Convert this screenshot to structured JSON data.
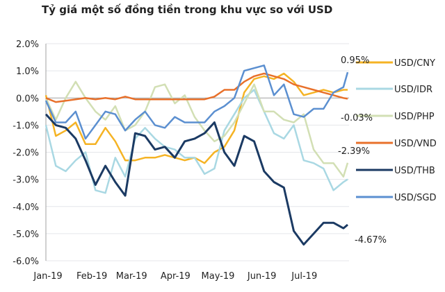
{
  "chart_data": {
    "type": "line",
    "title": "Tỷ giá một số đồng tiền trong khu vực so với USD",
    "xlabel": "",
    "ylabel": "",
    "ylim": [
      -6.0,
      2.0
    ],
    "y_ticks": [
      "2.0%",
      "1.0%",
      "0.0%",
      "-1.0%",
      "-2.0%",
      "-3.0%",
      "-4.0%",
      "-5.0%",
      "-6.0%"
    ],
    "y_tick_values": [
      2,
      1,
      0,
      -1,
      -2,
      -3,
      -4,
      -5,
      -6
    ],
    "x_range": [
      "2019-01-01",
      "2019-08-03"
    ],
    "x_ticks": [
      {
        "label": "Jan-19",
        "date": "2019-01-01"
      },
      {
        "label": "Feb-19",
        "date": "2019-02-01"
      },
      {
        "label": "Mar-19",
        "date": "2019-03-01"
      },
      {
        "label": "Apr-19",
        "date": "2019-04-01"
      },
      {
        "label": "May-19",
        "date": "2019-05-01"
      },
      {
        "label": "Jun-19",
        "date": "2019-06-01"
      },
      {
        "label": "Jul-19",
        "date": "2019-07-01"
      }
    ],
    "grid": "horizontal",
    "legend_position": "right",
    "x": [
      "2019-01-01",
      "2019-01-08",
      "2019-01-15",
      "2019-01-22",
      "2019-01-29",
      "2019-02-05",
      "2019-02-12",
      "2019-02-19",
      "2019-02-26",
      "2019-03-05",
      "2019-03-12",
      "2019-03-19",
      "2019-03-26",
      "2019-04-02",
      "2019-04-09",
      "2019-04-16",
      "2019-04-23",
      "2019-04-30",
      "2019-05-07",
      "2019-05-14",
      "2019-05-21",
      "2019-05-28",
      "2019-06-04",
      "2019-06-11",
      "2019-06-18",
      "2019-06-25",
      "2019-07-02",
      "2019-07-09",
      "2019-07-16",
      "2019-07-23",
      "2019-07-30",
      "2019-08-02"
    ],
    "series": [
      {
        "name": "USD/CNY",
        "color": "#f5b324",
        "values": [
          0.1,
          -1.4,
          -1.2,
          -0.9,
          -1.7,
          -1.7,
          -1.1,
          -1.6,
          -2.3,
          -2.3,
          -2.2,
          -2.2,
          -2.1,
          -2.2,
          -2.3,
          -2.2,
          -2.4,
          -2.0,
          -1.8,
          -1.2,
          0.2,
          0.7,
          0.8,
          0.7,
          0.9,
          0.6,
          0.1,
          0.2,
          0.3,
          0.2,
          0.3,
          0.3
        ]
      },
      {
        "name": "USD/IDR",
        "color": "#a9d8e3",
        "values": [
          -1.0,
          -2.5,
          -2.7,
          -2.3,
          -2.0,
          -3.4,
          -3.5,
          -2.2,
          -2.9,
          -1.5,
          -1.1,
          -1.5,
          -1.8,
          -1.9,
          -2.2,
          -2.2,
          -2.8,
          -2.6,
          -1.2,
          -0.6,
          0.0,
          0.3,
          -0.5,
          -1.3,
          -1.5,
          -1.0,
          -2.3,
          -2.4,
          -2.6,
          -3.4,
          -3.1,
          -3.0
        ]
      },
      {
        "name": "USD/PHP",
        "color": "#d2dfb4",
        "values": [
          0.0,
          -0.8,
          0.0,
          0.6,
          0.0,
          -0.5,
          -0.8,
          -0.3,
          -1.2,
          -1.0,
          -0.5,
          0.4,
          0.5,
          -0.2,
          0.1,
          -0.7,
          -1.2,
          -1.6,
          -1.4,
          -0.9,
          -0.2,
          0.5,
          -0.5,
          -0.5,
          -0.8,
          -0.9,
          -0.6,
          -1.9,
          -2.4,
          -2.4,
          -2.9,
          -2.39
        ],
        "end_label": "-2.39%"
      },
      {
        "name": "USD/VND",
        "color": "#e8702a",
        "values": [
          0.0,
          -0.15,
          -0.1,
          -0.05,
          0.0,
          -0.05,
          0.0,
          -0.05,
          0.05,
          -0.05,
          -0.05,
          -0.05,
          -0.05,
          -0.05,
          -0.05,
          -0.05,
          -0.05,
          0.05,
          0.3,
          0.3,
          0.6,
          0.8,
          0.9,
          0.8,
          0.7,
          0.5,
          0.4,
          0.3,
          0.2,
          0.1,
          0.0,
          -0.03
        ],
        "end_label": "-0.03%"
      },
      {
        "name": "USD/THB",
        "color": "#1b3a63",
        "values": [
          -0.6,
          -1.0,
          -1.1,
          -1.5,
          -2.3,
          -3.2,
          -2.5,
          -3.1,
          -3.6,
          -1.3,
          -1.4,
          -1.9,
          -1.8,
          -2.2,
          -1.6,
          -1.5,
          -1.3,
          -0.9,
          -2.0,
          -2.5,
          -1.4,
          -1.6,
          -2.7,
          -3.1,
          -3.3,
          -4.9,
          -5.4,
          -5.0,
          -4.6,
          -4.6,
          -4.8,
          -4.67
        ],
        "end_label": "-4.67%"
      },
      {
        "name": "USD/SGD",
        "color": "#5b8fd0",
        "values": [
          -0.1,
          -0.9,
          -0.9,
          -0.5,
          -1.5,
          -1.0,
          -0.5,
          -0.6,
          -1.2,
          -0.8,
          -0.5,
          -1.0,
          -1.1,
          -0.7,
          -0.9,
          -0.9,
          -0.9,
          -0.5,
          -0.3,
          0.0,
          1.0,
          1.1,
          1.2,
          0.1,
          0.5,
          -0.6,
          -0.7,
          -0.4,
          -0.4,
          0.2,
          0.4,
          0.95
        ],
        "end_label": "0.95%"
      }
    ]
  }
}
